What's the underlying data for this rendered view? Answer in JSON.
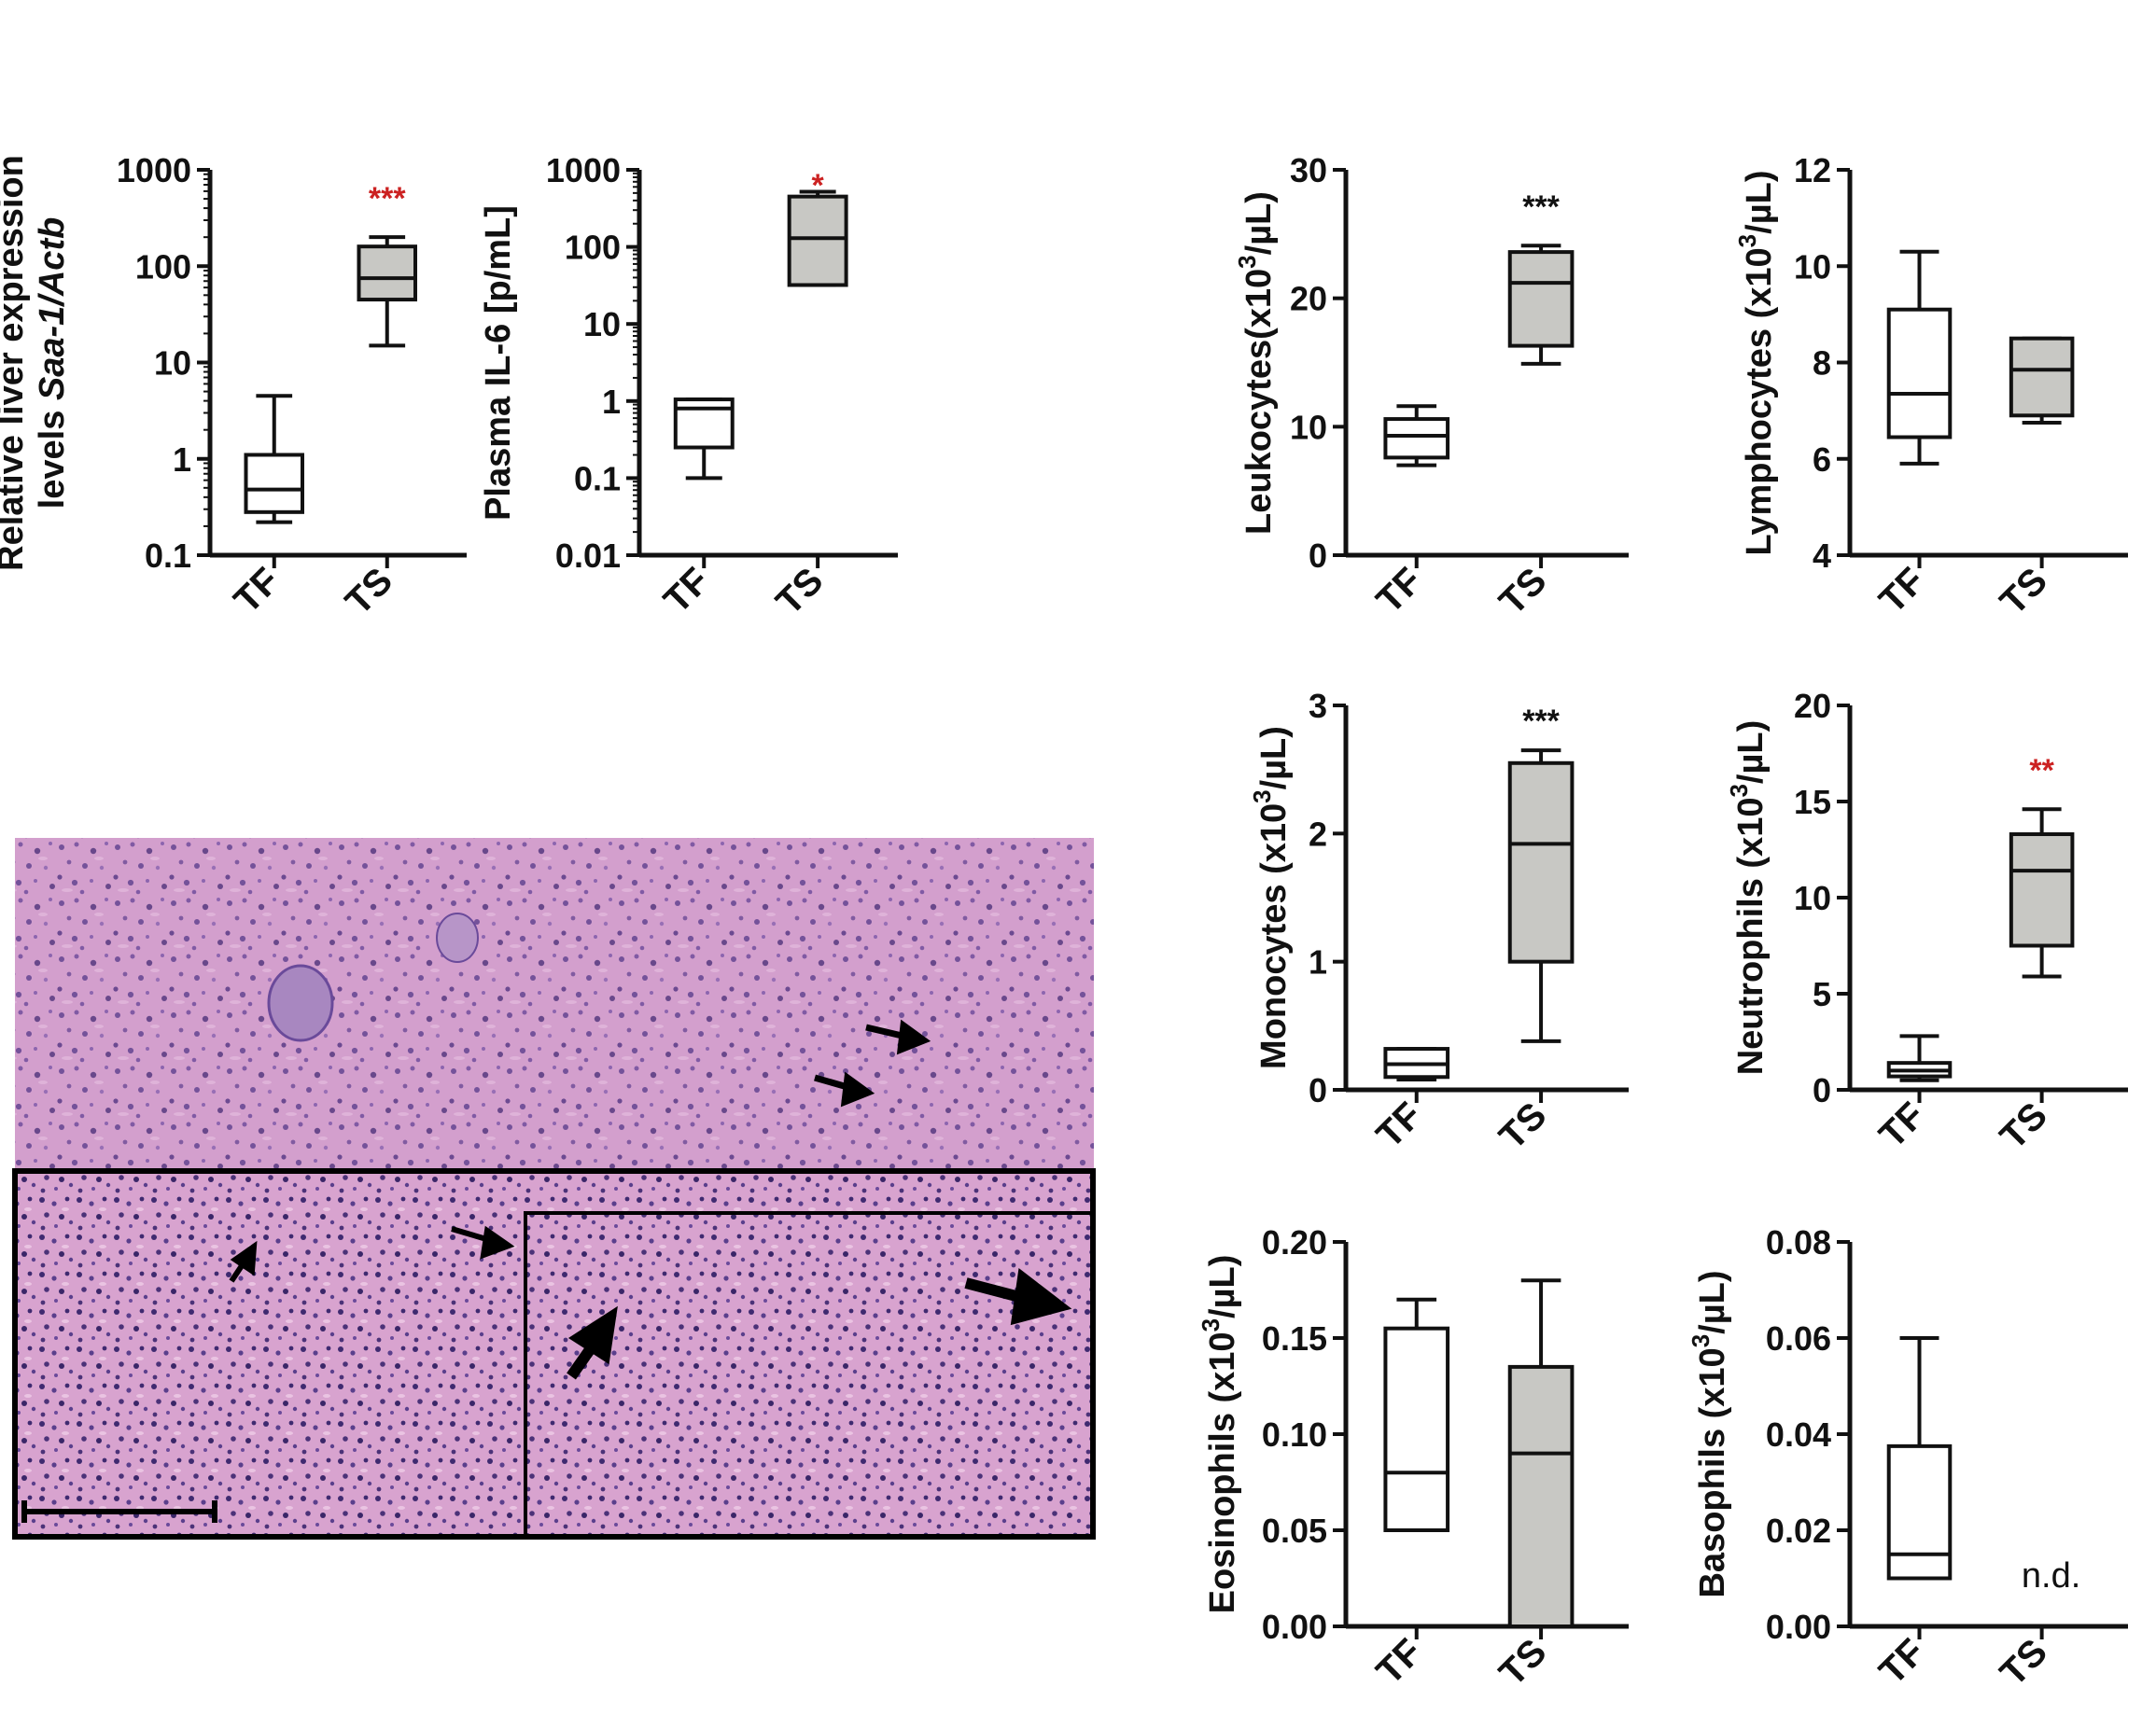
{
  "colors": {
    "tf_box": "#ffffff",
    "ts_box": "#c8c8c4",
    "stroke": "#111111",
    "sig_red": "#cc2222",
    "sig_black": "#111111",
    "tissue_base": "#d9a6d1",
    "tissue_nuclei": "#5a3f8c"
  },
  "chart_data": [
    {
      "id": "saa1",
      "type": "box",
      "ylabel": [
        "Relative liver expression",
        "levels "
      ],
      "ylabel_italic": "Saa-1/Actb",
      "ylim": [
        0.1,
        1000
      ],
      "yscale": "log",
      "yticks": [
        0.1,
        1,
        10,
        100,
        1000
      ],
      "ytick_labels": [
        "0.1",
        "1",
        "10",
        "100",
        "1000"
      ],
      "categories": [
        "TF",
        "TS"
      ],
      "boxes": [
        {
          "group": "TF",
          "min": 0.22,
          "q1": 0.28,
          "median": 0.48,
          "q3": 1.1,
          "max": 4.5
        },
        {
          "group": "TS",
          "min": 15,
          "q1": 45,
          "median": 75,
          "q3": 160,
          "max": 200
        }
      ],
      "significance": {
        "group": "TS",
        "text": "***",
        "color": "red"
      }
    },
    {
      "id": "il6",
      "type": "box",
      "ylabel": [
        "Plasma IL-6 [p/mL]"
      ],
      "ylim": [
        0.01,
        1000
      ],
      "yscale": "log",
      "yticks": [
        0.01,
        0.1,
        1,
        10,
        100,
        1000
      ],
      "ytick_labels": [
        "0.01",
        "0.1",
        "1",
        "10",
        "100",
        "1000"
      ],
      "categories": [
        "TF",
        "TS"
      ],
      "boxes": [
        {
          "group": "TF",
          "min": 0.1,
          "q1": 0.25,
          "median": 0.8,
          "q3": 1.05,
          "max": 1.05
        },
        {
          "group": "TS",
          "min": 32,
          "q1": 32,
          "median": 130,
          "q3": 450,
          "max": 520
        }
      ],
      "significance": {
        "group": "TS",
        "text": "*",
        "color": "red"
      }
    },
    {
      "id": "leuk",
      "type": "box",
      "ylabel": [
        "Leukocytes(x10",
        "/µL)"
      ],
      "ylim": [
        0,
        30
      ],
      "yscale": "linear",
      "yticks": [
        0,
        10,
        20,
        30
      ],
      "ytick_labels": [
        "0",
        "10",
        "20",
        "30"
      ],
      "categories": [
        "TF",
        "TS"
      ],
      "boxes": [
        {
          "group": "TF",
          "min": 7,
          "q1": 7.6,
          "median": 9.3,
          "q3": 10.6,
          "max": 11.6
        },
        {
          "group": "TS",
          "min": 14.9,
          "q1": 16.3,
          "median": 21.2,
          "q3": 23.6,
          "max": 24.1
        }
      ],
      "significance": {
        "group": "TS",
        "text": "***",
        "color": "black"
      }
    },
    {
      "id": "lymph",
      "type": "box",
      "ylabel": [
        "Lymphocytes (x10",
        "/µL)"
      ],
      "ylim": [
        4,
        12
      ],
      "yscale": "linear",
      "yticks": [
        4,
        6,
        8,
        10,
        12
      ],
      "ytick_labels": [
        "4",
        "6",
        "8",
        "10",
        "12"
      ],
      "categories": [
        "TF",
        "TS"
      ],
      "boxes": [
        {
          "group": "TF",
          "min": 5.9,
          "q1": 6.45,
          "median": 7.35,
          "q3": 9.1,
          "max": 10.3
        },
        {
          "group": "TS",
          "min": 6.75,
          "q1": 6.9,
          "median": 7.85,
          "q3": 8.5,
          "max": 8.5
        }
      ],
      "significance": null
    },
    {
      "id": "mono",
      "type": "box",
      "ylabel": [
        "Monocytes (x10",
        "/µL)"
      ],
      "ylim": [
        0,
        3
      ],
      "yscale": "linear",
      "yticks": [
        0,
        1,
        2,
        3
      ],
      "ytick_labels": [
        "0",
        "1",
        "2",
        "3"
      ],
      "categories": [
        "TF",
        "TS"
      ],
      "boxes": [
        {
          "group": "TF",
          "min": 0.08,
          "q1": 0.1,
          "median": 0.2,
          "q3": 0.32,
          "max": 0.32
        },
        {
          "group": "TS",
          "min": 0.38,
          "q1": 1.0,
          "median": 1.92,
          "q3": 2.55,
          "max": 2.65
        }
      ],
      "significance": {
        "group": "TS",
        "text": "***",
        "color": "black"
      }
    },
    {
      "id": "neut",
      "type": "box",
      "ylabel": [
        "Neutrophils (x10",
        "/µL)"
      ],
      "ylim": [
        0,
        20
      ],
      "yscale": "linear",
      "yticks": [
        0,
        5,
        10,
        15,
        20
      ],
      "ytick_labels": [
        "0",
        "5",
        "10",
        "15",
        "20"
      ],
      "categories": [
        "TF",
        "TS"
      ],
      "boxes": [
        {
          "group": "TF",
          "min": 0.5,
          "q1": 0.7,
          "median": 1.0,
          "q3": 1.4,
          "max": 2.8
        },
        {
          "group": "TS",
          "min": 5.9,
          "q1": 7.5,
          "median": 11.4,
          "q3": 13.3,
          "max": 14.6
        }
      ],
      "significance": {
        "group": "TS",
        "text": "**",
        "color": "red"
      }
    },
    {
      "id": "eos",
      "type": "box",
      "ylabel": [
        "Eosinophils (x10",
        "/µL)"
      ],
      "ylim": [
        0,
        0.2
      ],
      "yscale": "linear",
      "yticks": [
        0,
        0.05,
        0.1,
        0.15,
        0.2
      ],
      "ytick_labels": [
        "0.00",
        "0.05",
        "0.10",
        "0.15",
        "0.20"
      ],
      "categories": [
        "TF",
        "TS"
      ],
      "boxes": [
        {
          "group": "TF",
          "min": 0.05,
          "q1": 0.05,
          "median": 0.08,
          "q3": 0.155,
          "max": 0.17
        },
        {
          "group": "TS",
          "min": 0.0,
          "q1": 0.0,
          "median": 0.09,
          "q3": 0.135,
          "max": 0.18
        }
      ],
      "significance": null
    },
    {
      "id": "baso",
      "type": "box",
      "ylabel": [
        "Basophils (x10",
        "/µL)"
      ],
      "ylim": [
        0,
        0.08
      ],
      "yscale": "linear",
      "yticks": [
        0,
        0.02,
        0.04,
        0.06,
        0.08
      ],
      "ytick_labels": [
        "0.00",
        "0.02",
        "0.04",
        "0.06",
        "0.08"
      ],
      "categories": [
        "TF",
        "TS"
      ],
      "boxes": [
        {
          "group": "TF",
          "min": 0.01,
          "q1": 0.01,
          "median": 0.015,
          "q3": 0.0375,
          "max": 0.06
        }
      ],
      "significance": null,
      "note": {
        "group": "TS",
        "text": "n.d."
      }
    }
  ]
}
